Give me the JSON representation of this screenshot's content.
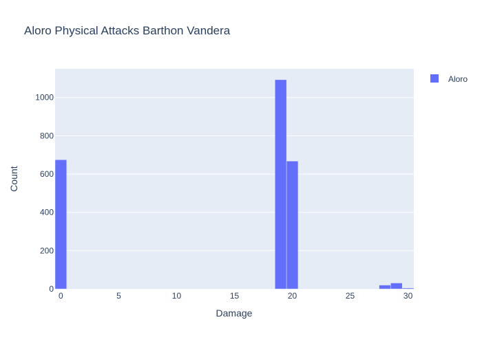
{
  "chart_data": {
    "type": "bar",
    "title": "Aloro Physical Attacks Barthon Vandera",
    "xlabel": "Damage",
    "ylabel": "Count",
    "xlim": [
      -0.5,
      30.5
    ],
    "ylim": [
      0,
      1150
    ],
    "x_ticks": [
      0,
      5,
      10,
      15,
      20,
      25,
      30
    ],
    "y_ticks": [
      0,
      200,
      400,
      600,
      800,
      1000
    ],
    "legend_position": "top-right",
    "grid": true,
    "colors": {
      "bar": "#636efa",
      "plot_bg": "#e5ecf6",
      "grid": "#ffffff",
      "text": "#2a3f5f"
    },
    "series": [
      {
        "name": "Aloro",
        "bins": [
          {
            "x0": -0.5,
            "x1": 0.5,
            "value": 675
          },
          {
            "x0": 18.5,
            "x1": 19.5,
            "value": 1093
          },
          {
            "x0": 19.5,
            "x1": 20.5,
            "value": 668
          },
          {
            "x0": 27.5,
            "x1": 28.5,
            "value": 20
          },
          {
            "x0": 28.5,
            "x1": 29.5,
            "value": 31
          },
          {
            "x0": 29.5,
            "x1": 30.5,
            "value": 5
          }
        ]
      }
    ]
  }
}
